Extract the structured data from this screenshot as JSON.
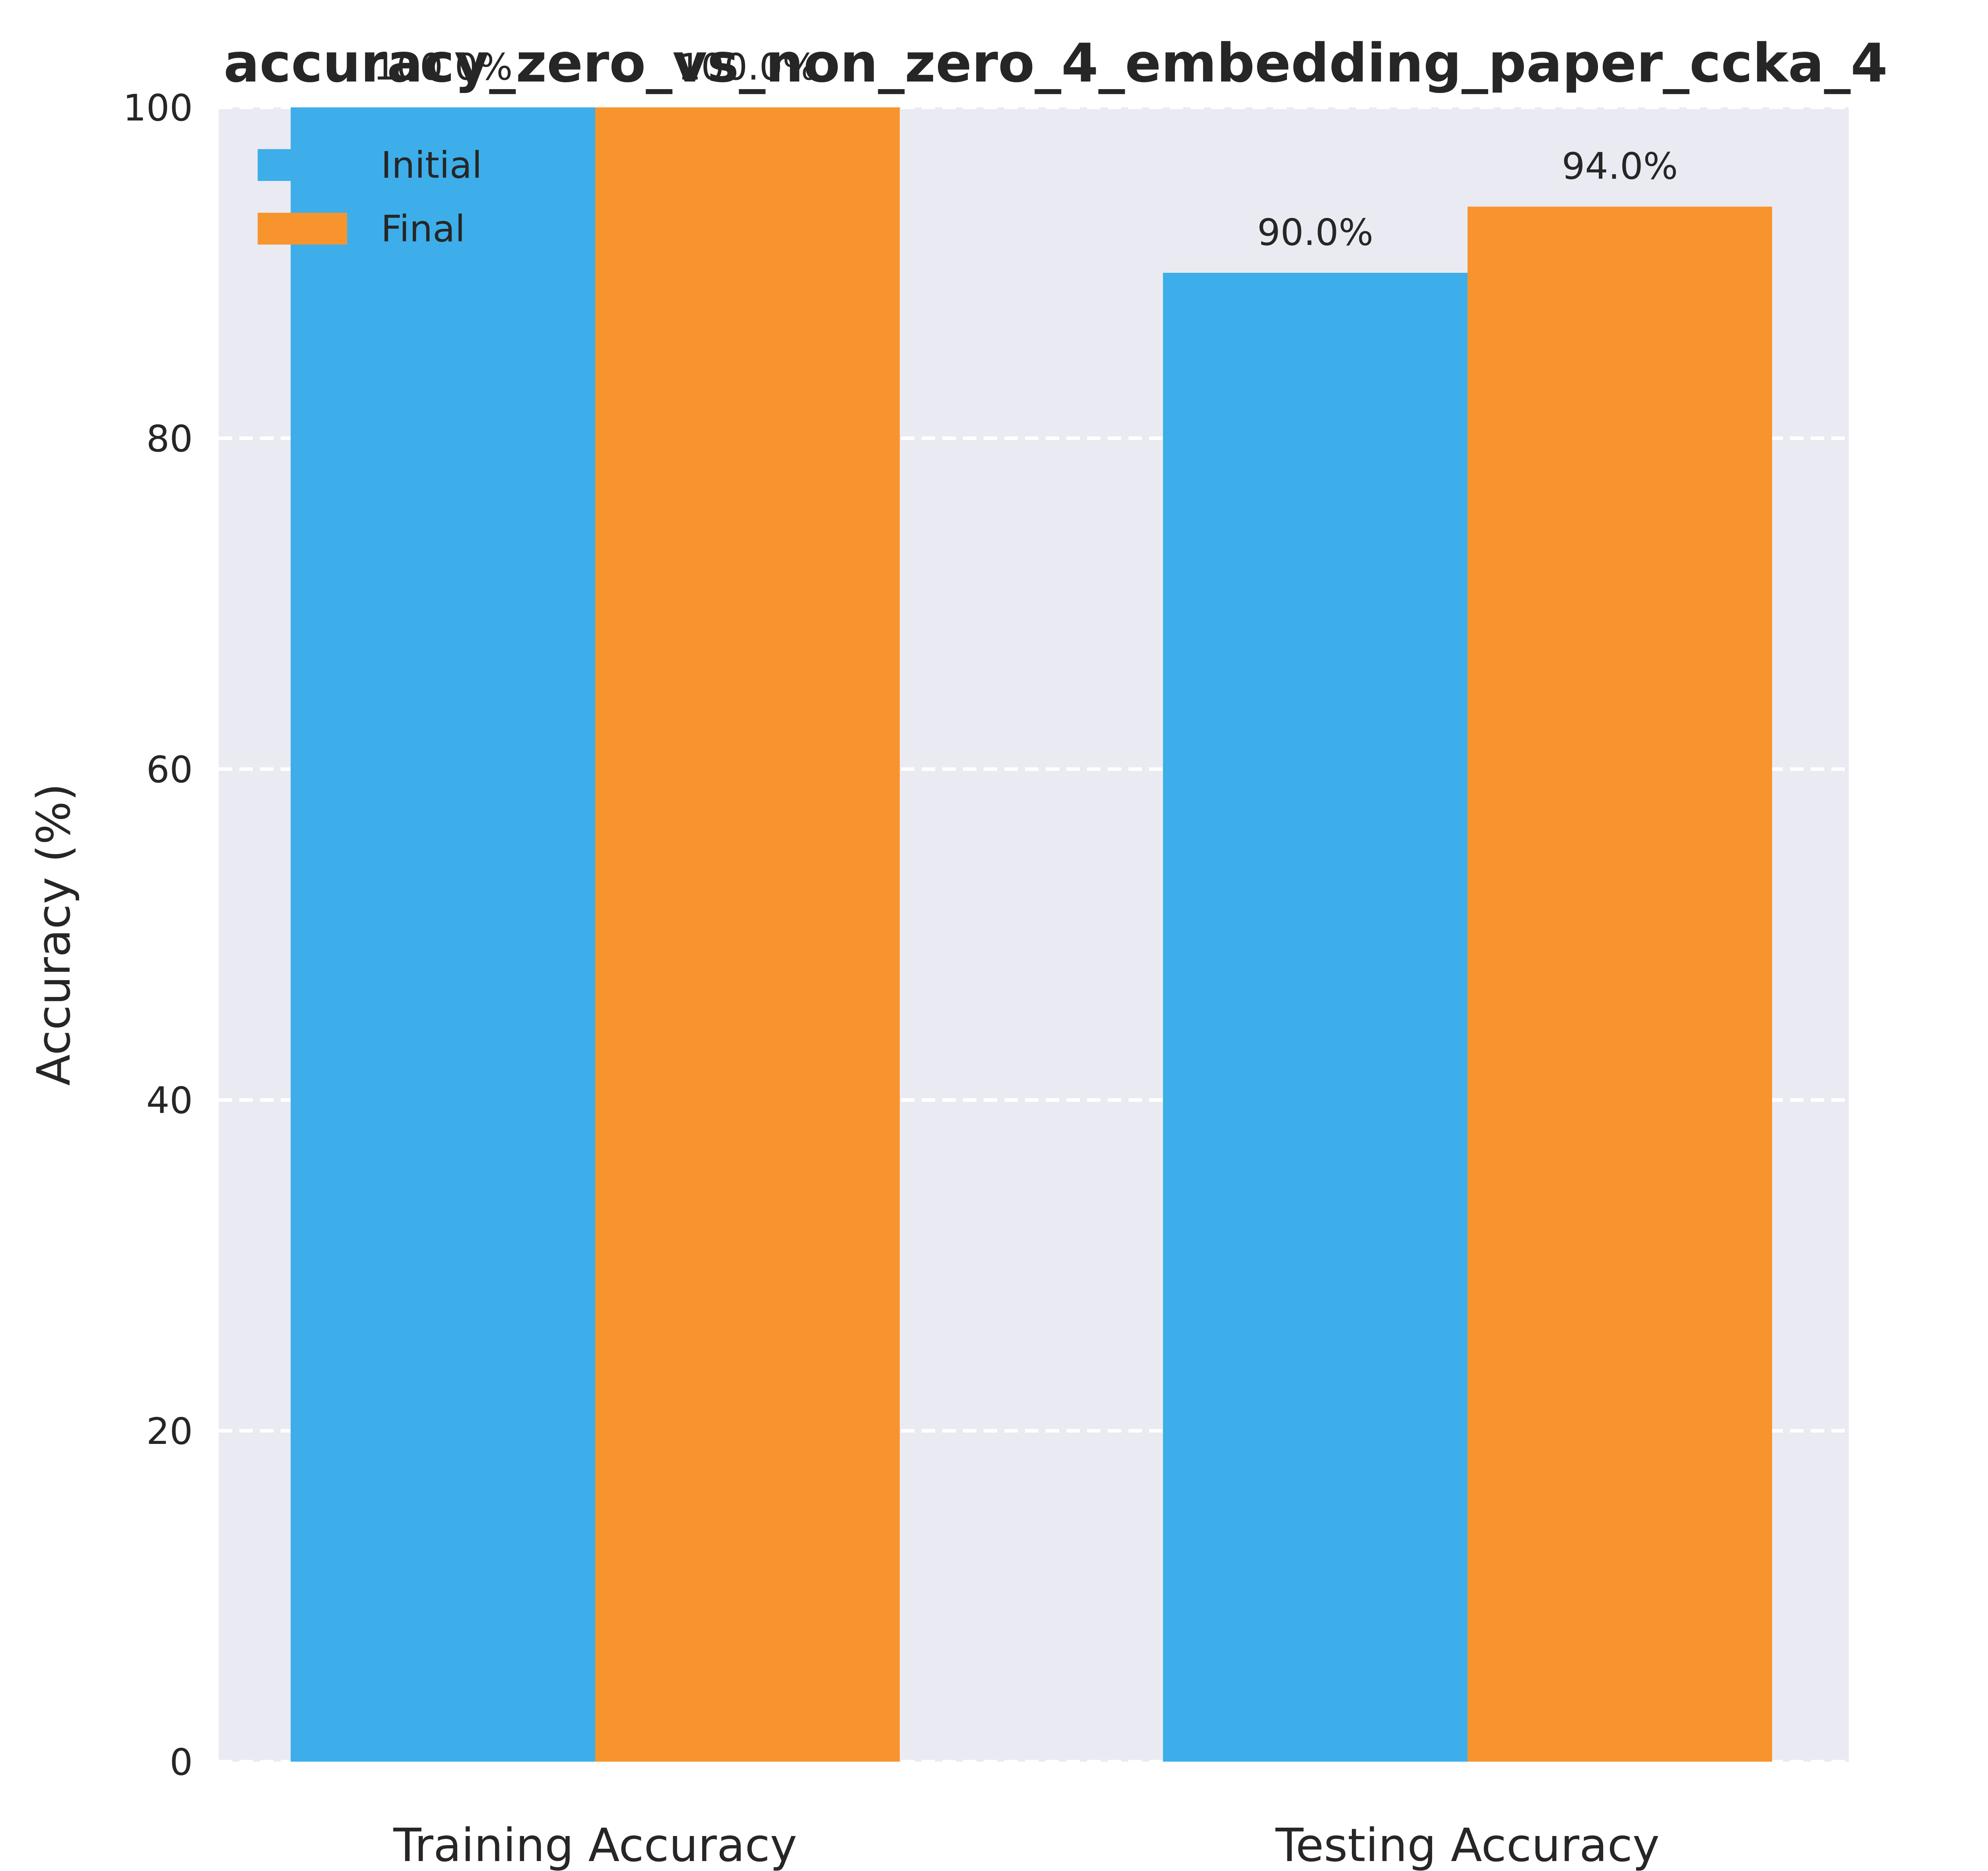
{
  "chart_data": {
    "type": "bar",
    "title": "accuracy_zero_vs_non_zero_4_embedding_paper_ccka_4",
    "ylabel": "Accuracy (%)",
    "xlabel": "",
    "categories": [
      "Training Accuracy",
      "Testing Accuracy"
    ],
    "series": [
      {
        "name": "Initial",
        "values": [
          100.0,
          90.0
        ],
        "labels": [
          "100.0%",
          "90.0%"
        ],
        "color": "#3daeea"
      },
      {
        "name": "Final",
        "values": [
          100.0,
          94.0
        ],
        "labels": [
          "100.0%",
          "94.0%"
        ],
        "color": "#f7942e"
      }
    ],
    "ylim": [
      0,
      100
    ],
    "yticks": [
      "0",
      "20",
      "40",
      "60",
      "80",
      "100"
    ],
    "grid": "y-dashed",
    "legend": "top-left",
    "background": "#eaeaf2"
  }
}
